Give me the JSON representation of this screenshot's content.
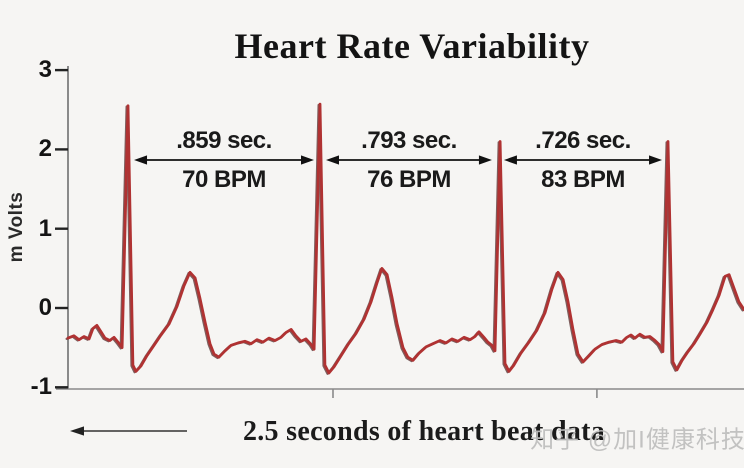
{
  "title": "Heart Rate Variability",
  "watermark": "知乎 @加I健康科技",
  "chart_data": {
    "type": "line",
    "title": "Heart Rate Variability",
    "ylabel": "m Volts",
    "xlabel": "2.5 seconds of heart beat data",
    "ylim": [
      -1,
      3
    ],
    "y_ticks": [
      3,
      2,
      1,
      0,
      -1
    ],
    "x_window_seconds": 2.5,
    "x_tick_times": [
      0.98,
      1.956
    ],
    "grid": "off",
    "legend": "none",
    "line_color": "#b03232",
    "line_shadow_color": "#3c0d0d",
    "axis_color": "#8a8a8a",
    "annotation_color": "#111111",
    "beats": [
      {
        "r_peak_t": 0.222,
        "r_amplitude_mv": 2.55
      },
      {
        "r_peak_t": 0.932,
        "r_amplitude_mv": 2.57
      },
      {
        "r_peak_t": 1.59,
        "r_amplitude_mv": 2.1
      },
      {
        "r_peak_t": 2.219,
        "r_amplitude_mv": 2.1
      }
    ],
    "rr_intervals": [
      {
        "label": ".859 sec.",
        "seconds": 0.859,
        "bpm_label": "70 BPM",
        "bpm": 70
      },
      {
        "label": ".793 sec.",
        "seconds": 0.793,
        "bpm_label": "76 BPM",
        "bpm": 76
      },
      {
        "label": ".726 sec.",
        "seconds": 0.726,
        "bpm_label": "83 BPM",
        "bpm": 83
      }
    ],
    "trace": [
      [
        0.0,
        -0.38
      ],
      [
        0.022,
        -0.35
      ],
      [
        0.041,
        -0.4
      ],
      [
        0.059,
        -0.36
      ],
      [
        0.078,
        -0.39
      ],
      [
        0.092,
        -0.26
      ],
      [
        0.107,
        -0.22
      ],
      [
        0.122,
        -0.3
      ],
      [
        0.137,
        -0.38
      ],
      [
        0.155,
        -0.41
      ],
      [
        0.17,
        -0.37
      ],
      [
        0.185,
        -0.43
      ],
      [
        0.2,
        -0.5
      ],
      [
        0.222,
        2.55
      ],
      [
        0.24,
        -0.72
      ],
      [
        0.251,
        -0.8
      ],
      [
        0.27,
        -0.73
      ],
      [
        0.292,
        -0.6
      ],
      [
        0.318,
        -0.47
      ],
      [
        0.344,
        -0.34
      ],
      [
        0.374,
        -0.2
      ],
      [
        0.403,
        0.02
      ],
      [
        0.429,
        0.28
      ],
      [
        0.451,
        0.45
      ],
      [
        0.47,
        0.38
      ],
      [
        0.488,
        0.12
      ],
      [
        0.507,
        -0.18
      ],
      [
        0.525,
        -0.45
      ],
      [
        0.54,
        -0.58
      ],
      [
        0.558,
        -0.62
      ],
      [
        0.581,
        -0.54
      ],
      [
        0.603,
        -0.47
      ],
      [
        0.629,
        -0.44
      ],
      [
        0.655,
        -0.42
      ],
      [
        0.677,
        -0.45
      ],
      [
        0.699,
        -0.4
      ],
      [
        0.721,
        -0.43
      ],
      [
        0.743,
        -0.38
      ],
      [
        0.766,
        -0.41
      ],
      [
        0.788,
        -0.37
      ],
      [
        0.806,
        -0.31
      ],
      [
        0.825,
        -0.27
      ],
      [
        0.843,
        -0.35
      ],
      [
        0.862,
        -0.42
      ],
      [
        0.88,
        -0.39
      ],
      [
        0.899,
        -0.46
      ],
      [
        0.91,
        -0.52
      ],
      [
        0.932,
        2.57
      ],
      [
        0.95,
        -0.72
      ],
      [
        0.965,
        -0.82
      ],
      [
        0.984,
        -0.74
      ],
      [
        1.01,
        -0.6
      ],
      [
        1.036,
        -0.46
      ],
      [
        1.065,
        -0.32
      ],
      [
        1.095,
        -0.14
      ],
      [
        1.121,
        0.08
      ],
      [
        1.143,
        0.32
      ],
      [
        1.161,
        0.5
      ],
      [
        1.18,
        0.42
      ],
      [
        1.198,
        0.14
      ],
      [
        1.217,
        -0.2
      ],
      [
        1.239,
        -0.5
      ],
      [
        1.257,
        -0.62
      ],
      [
        1.276,
        -0.66
      ],
      [
        1.298,
        -0.57
      ],
      [
        1.324,
        -0.49
      ],
      [
        1.35,
        -0.45
      ],
      [
        1.376,
        -0.41
      ],
      [
        1.398,
        -0.44
      ],
      [
        1.42,
        -0.39
      ],
      [
        1.442,
        -0.42
      ],
      [
        1.465,
        -0.37
      ],
      [
        1.487,
        -0.4
      ],
      [
        1.505,
        -0.36
      ],
      [
        1.52,
        -0.3
      ],
      [
        1.538,
        -0.37
      ],
      [
        1.553,
        -0.43
      ],
      [
        1.568,
        -0.47
      ],
      [
        1.579,
        -0.54
      ],
      [
        1.598,
        2.1
      ],
      [
        1.616,
        -0.7
      ],
      [
        1.631,
        -0.8
      ],
      [
        1.649,
        -0.72
      ],
      [
        1.675,
        -0.57
      ],
      [
        1.705,
        -0.43
      ],
      [
        1.734,
        -0.28
      ],
      [
        1.764,
        -0.06
      ],
      [
        1.79,
        0.24
      ],
      [
        1.812,
        0.45
      ],
      [
        1.831,
        0.36
      ],
      [
        1.849,
        0.08
      ],
      [
        1.868,
        -0.28
      ],
      [
        1.886,
        -0.58
      ],
      [
        1.905,
        -0.68
      ],
      [
        1.927,
        -0.6
      ],
      [
        1.949,
        -0.52
      ],
      [
        1.975,
        -0.46
      ],
      [
        2.001,
        -0.43
      ],
      [
        2.027,
        -0.41
      ],
      [
        2.049,
        -0.43
      ],
      [
        2.067,
        -0.37
      ],
      [
        2.082,
        -0.34
      ],
      [
        2.097,
        -0.38
      ],
      [
        2.115,
        -0.33
      ],
      [
        2.134,
        -0.37
      ],
      [
        2.152,
        -0.36
      ],
      [
        2.171,
        -0.41
      ],
      [
        2.186,
        -0.46
      ],
      [
        2.2,
        -0.55
      ],
      [
        2.219,
        2.1
      ],
      [
        2.237,
        -0.68
      ],
      [
        2.252,
        -0.78
      ],
      [
        2.271,
        -0.66
      ],
      [
        2.293,
        -0.55
      ],
      [
        2.315,
        -0.45
      ],
      [
        2.337,
        -0.33
      ],
      [
        2.363,
        -0.18
      ],
      [
        2.385,
        -0.02
      ],
      [
        2.408,
        0.16
      ],
      [
        2.43,
        0.4
      ],
      [
        2.445,
        0.42
      ],
      [
        2.463,
        0.25
      ],
      [
        2.481,
        0.08
      ],
      [
        2.5,
        -0.02
      ]
    ]
  }
}
